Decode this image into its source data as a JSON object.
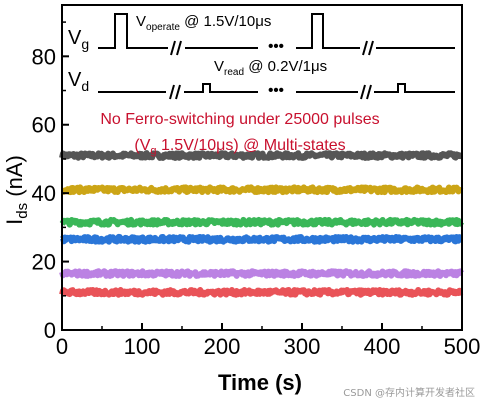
{
  "chart_data": {
    "type": "scatter",
    "xlabel": "Time (s)",
    "ylabel_main": "I",
    "ylabel_sub": "ds",
    "ylabel_unit": " (nA)",
    "xlim": [
      0,
      500
    ],
    "ylim": [
      0,
      95
    ],
    "x_ticks": [
      0,
      100,
      200,
      300,
      400,
      500
    ],
    "y_ticks": [
      0,
      20,
      40,
      60,
      80
    ],
    "grid": false,
    "series": [
      {
        "level": 51,
        "color": "#4d4d4d"
      },
      {
        "level": 41,
        "color": "#c9a00a"
      },
      {
        "level": 31.5,
        "color": "#2fb34f"
      },
      {
        "level": 26.5,
        "color": "#1f6fd6"
      },
      {
        "level": 16.5,
        "color": "#b77be2"
      },
      {
        "level": 11,
        "color": "#e84a4f"
      }
    ],
    "annotation": {
      "line1": "No Ferro-switching under 25000 pulses",
      "line2_open": "(V",
      "line2_sub": "g",
      "line2_rest": " 1.5V/10μs) @ Multi-states",
      "color": "#c8102e"
    },
    "pulse_scheme": {
      "vg_main": "V",
      "vg_sub": "g",
      "vg_label_main": "V",
      "vg_label_sub": "operate",
      "vg_label_rest": " @ 1.5V/10μs",
      "vd_main": "V",
      "vd_sub": "d",
      "vd_label_main": "V",
      "vd_label_sub": "read",
      "vd_label_rest": " @ 0.2V/1μs",
      "ellipsis": "•••",
      "break_mark": "//"
    }
  },
  "watermark": "CSDN @存内计算开发者社区"
}
